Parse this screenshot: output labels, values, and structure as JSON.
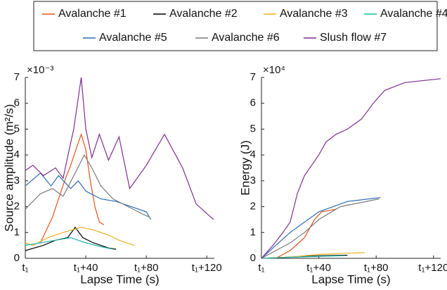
{
  "chart_data": [
    {
      "type": "line",
      "ylabel": "Source amplitude (m²/s)",
      "xlabel": "Lapse Time (s)",
      "multiplier": "×10⁻³",
      "xlim": [
        0,
        125
      ],
      "ylim": [
        0,
        7
      ],
      "xticks": [
        {
          "value": 0,
          "label": "t₁"
        },
        {
          "value": 40,
          "label": "t₁+40"
        },
        {
          "value": 80,
          "label": "t₁+80"
        },
        {
          "value": 120,
          "label": "t₁+120"
        }
      ],
      "yticks": [
        0,
        1,
        2,
        3,
        4,
        5,
        6,
        7
      ],
      "series": [
        {
          "name": "Avalanche #1",
          "color": "#e0541c",
          "x": [
            10,
            14,
            18,
            22,
            26,
            30,
            34,
            37,
            40,
            43,
            46,
            49,
            52
          ],
          "values": [
            0.6,
            1.1,
            1.6,
            2.3,
            3.0,
            3.6,
            4.3,
            4.8,
            4.2,
            3.0,
            2.0,
            1.4,
            1.3
          ]
        },
        {
          "name": "Avalanche #2",
          "color": "#000000",
          "x": [
            0,
            12,
            20,
            28,
            33,
            38,
            45,
            55,
            60
          ],
          "values": [
            0.3,
            0.5,
            0.7,
            0.8,
            1.2,
            0.8,
            0.6,
            0.4,
            0.35
          ]
        },
        {
          "name": "Avalanche #3",
          "color": "#edb120",
          "x": [
            0,
            5,
            15,
            25,
            37,
            45,
            55,
            62,
            72
          ],
          "values": [
            0.6,
            0.5,
            0.8,
            1.0,
            1.2,
            1.1,
            0.9,
            0.7,
            0.5
          ]
        },
        {
          "name": "Avalanche #4",
          "color": "#1fb5a8",
          "x": [
            0,
            10,
            20,
            30,
            40,
            50,
            58
          ],
          "values": [
            0.5,
            0.6,
            0.7,
            0.8,
            0.6,
            0.45,
            0.35
          ]
        },
        {
          "name": "Avalanche #5",
          "color": "#2e6bb5",
          "x": [
            0,
            10,
            17,
            22,
            30,
            35,
            40,
            50,
            60,
            70,
            80,
            83
          ],
          "values": [
            2.8,
            3.3,
            2.8,
            3.2,
            2.7,
            3.0,
            2.6,
            2.3,
            2.2,
            2.0,
            1.8,
            1.5
          ]
        },
        {
          "name": "Avalanche #6",
          "color": "#7a7a7a",
          "x": [
            0,
            10,
            18,
            25,
            33,
            39,
            44,
            50,
            58,
            68,
            78,
            82
          ],
          "values": [
            1.9,
            2.5,
            2.7,
            2.4,
            3.3,
            4.0,
            3.5,
            2.8,
            2.3,
            2.0,
            1.7,
            1.6
          ]
        },
        {
          "name": "Slush flow #7",
          "color": "#7e2f8e",
          "x": [
            0,
            5,
            12,
            20,
            25,
            29,
            32,
            37,
            40,
            44,
            49,
            55,
            62,
            69,
            80,
            92,
            104,
            113,
            124.5
          ],
          "values": [
            3.4,
            3.6,
            3.2,
            3.5,
            3.1,
            4.2,
            5.0,
            7.0,
            5.0,
            3.9,
            4.8,
            3.8,
            4.7,
            2.7,
            3.6,
            4.8,
            3.5,
            2.1,
            1.5
          ]
        }
      ]
    },
    {
      "type": "line",
      "ylabel": "Energy (J)",
      "xlabel": "Lapse Time (s)",
      "multiplier": "×10⁴",
      "xlim": [
        0,
        125
      ],
      "ylim": [
        0,
        7
      ],
      "xticks": [
        {
          "value": 0,
          "label": "t₁"
        },
        {
          "value": 40,
          "label": "t₁+40"
        },
        {
          "value": 80,
          "label": "t₁+80"
        },
        {
          "value": 120,
          "label": "t₁+120"
        }
      ],
      "yticks": [
        0,
        1,
        2,
        3,
        4,
        5,
        6,
        7
      ],
      "series": [
        {
          "color": "#e0541c",
          "x": [
            10,
            20,
            30,
            37,
            42,
            52
          ],
          "values": [
            0,
            0.3,
            0.8,
            1.5,
            1.8,
            1.9
          ]
        },
        {
          "color": "#000000",
          "x": [
            0,
            20,
            40,
            60
          ],
          "values": [
            0,
            0.05,
            0.1,
            0.12
          ]
        },
        {
          "color": "#edb120",
          "x": [
            0,
            20,
            40,
            60,
            72
          ],
          "values": [
            0,
            0.05,
            0.15,
            0.2,
            0.22
          ]
        },
        {
          "color": "#1fb5a8",
          "x": [
            0,
            20,
            40,
            58
          ],
          "values": [
            0,
            0.04,
            0.08,
            0.1
          ]
        },
        {
          "color": "#2e6bb5",
          "x": [
            0,
            10,
            20,
            30,
            40,
            60,
            83
          ],
          "values": [
            0,
            0.5,
            1.0,
            1.4,
            1.8,
            2.2,
            2.35
          ]
        },
        {
          "color": "#7a7a7a",
          "x": [
            0,
            10,
            20,
            30,
            40,
            55,
            82
          ],
          "values": [
            0,
            0.3,
            0.6,
            1.0,
            1.5,
            2.0,
            2.3
          ]
        },
        {
          "color": "#7e2f8e",
          "x": [
            0,
            8,
            15,
            20,
            25,
            30,
            35,
            40,
            45,
            52,
            60,
            70,
            78,
            86,
            100,
            125
          ],
          "values": [
            0,
            0.5,
            1.0,
            1.4,
            2.5,
            3.2,
            3.6,
            4.0,
            4.5,
            4.8,
            5.0,
            5.4,
            6.0,
            6.5,
            6.8,
            6.95
          ]
        }
      ]
    }
  ]
}
